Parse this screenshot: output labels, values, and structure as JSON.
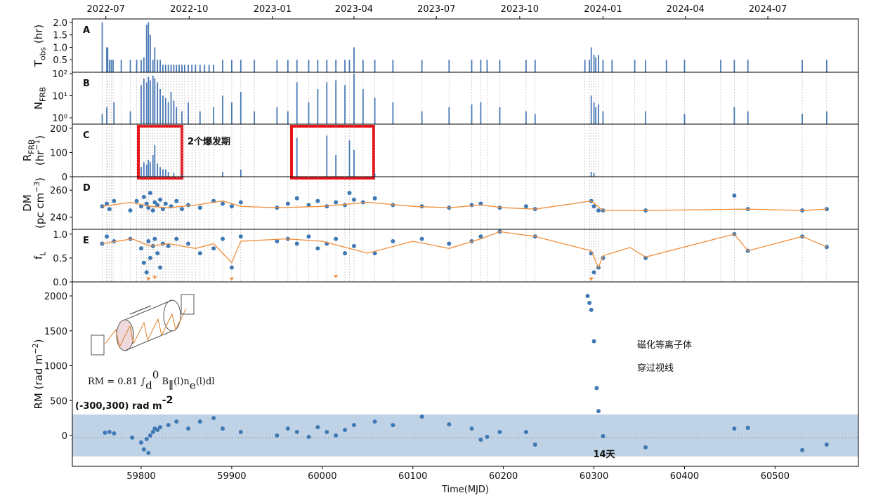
{
  "chart_data": [
    {
      "type": "bar",
      "panel_label": "A",
      "ylabel": [
        {
          "text": "T"
        },
        {
          "sub": "obs"
        },
        {
          "text": " (hr)"
        }
      ],
      "xlim": [
        59724,
        60592
      ],
      "ylim": [
        0,
        2.14
      ],
      "yticks": [
        {
          "value": 0.5,
          "label": "0.5"
        },
        {
          "value": 1.0,
          "label": "1.0"
        },
        {
          "value": 1.5,
          "label": "1.5"
        },
        {
          "value": 2.0,
          "label": "2.0"
        }
      ],
      "x2ticks": [
        {
          "value": 59761,
          "label": "2022-07"
        },
        {
          "value": 59853,
          "label": "2022-10"
        },
        {
          "value": 59945,
          "label": "2023-01"
        },
        {
          "value": 60035,
          "label": "2023-04"
        },
        {
          "value": 60126,
          "label": "2023-07"
        },
        {
          "value": 60218,
          "label": "2023-10"
        },
        {
          "value": 60310,
          "label": "2024-01"
        },
        {
          "value": 60401,
          "label": "2024-04"
        },
        {
          "value": 60492,
          "label": "2024-07"
        }
      ],
      "series": [
        {
          "mark": "bars",
          "color": "#4a7ab5",
          "x": [
            59757,
            59762,
            59763,
            59765,
            59767,
            59769,
            59778,
            59788,
            59795,
            59800,
            59803,
            59806,
            59808,
            59810,
            59813,
            59815,
            59818,
            59821,
            59824,
            59827,
            59830,
            59833,
            59836,
            59839,
            59842,
            59845,
            59848,
            59852,
            59856,
            59860,
            59865,
            59870,
            59875,
            59880,
            59890,
            59900,
            59910,
            59925,
            59950,
            59962,
            59972,
            59985,
            59995,
            60005,
            60015,
            60025,
            60030,
            60035,
            60045,
            60058,
            60078,
            60110,
            60140,
            60165,
            60175,
            60182,
            60196,
            60225,
            60235,
            60290,
            60295,
            60297,
            60300,
            60302,
            60305,
            60310,
            60320,
            60345,
            60357,
            60380,
            60400,
            60440,
            60455,
            60470,
            60530,
            60557
          ],
          "values": [
            2.0,
            1.0,
            1.0,
            0.5,
            0.5,
            0.5,
            0.5,
            0.5,
            0.5,
            0.5,
            0.6,
            1.9,
            2.0,
            1.5,
            0.5,
            1.0,
            0.5,
            0.5,
            0.3,
            0.3,
            0.3,
            0.3,
            0.3,
            0.3,
            0.3,
            0.3,
            0.3,
            0.3,
            0.3,
            0.3,
            0.3,
            0.3,
            0.3,
            0.3,
            0.5,
            0.5,
            0.5,
            0.5,
            0.5,
            0.5,
            0.5,
            0.5,
            0.5,
            0.5,
            0.5,
            0.5,
            0.5,
            1.0,
            0.5,
            0.5,
            0.5,
            0.5,
            0.5,
            0.5,
            0.5,
            0.5,
            0.5,
            0.5,
            0.5,
            0.5,
            0.5,
            1.0,
            0.7,
            0.6,
            0.7,
            0.5,
            0.5,
            0.5,
            0.5,
            0.5,
            0.5,
            0.5,
            0.5,
            0.5,
            0.5,
            0.5
          ]
        }
      ]
    },
    {
      "type": "bar",
      "panel_label": "B",
      "ylabel": [
        {
          "text": "N"
        },
        {
          "sub": "FRB"
        }
      ],
      "ylog": true,
      "obs_lines": true,
      "xlim": [
        59724,
        60592
      ],
      "ylim": [
        0.52,
        115
      ],
      "yticks": [
        {
          "value": 1,
          "label": "10⁰"
        },
        {
          "value": 10,
          "label": "10¹"
        },
        {
          "value": 100,
          "label": "10²"
        }
      ],
      "series": [
        {
          "mark": "bars",
          "color": "#4a7ab5",
          "x": [
            59757,
            59762,
            59770,
            59788,
            59800,
            59803,
            59806,
            59808,
            59810,
            59813,
            59815,
            59818,
            59821,
            59824,
            59827,
            59830,
            59833,
            59836,
            59839,
            59845,
            59852,
            59865,
            59880,
            59890,
            59900,
            59910,
            59925,
            59950,
            59962,
            59972,
            59985,
            59995,
            60005,
            60015,
            60025,
            60035,
            60045,
            60058,
            60078,
            60110,
            60140,
            60165,
            60175,
            60196,
            60225,
            60235,
            60297,
            60300,
            60302,
            60305,
            60310,
            60357,
            60400,
            60455,
            60470,
            60530,
            60557
          ],
          "values": [
            1.5,
            3,
            5,
            2,
            30,
            60,
            40,
            70,
            50,
            80,
            60,
            40,
            20,
            10,
            8,
            5,
            15,
            6,
            3,
            2,
            5,
            2,
            3,
            10,
            5,
            15,
            2,
            3,
            2,
            40,
            5,
            20,
            40,
            50,
            30,
            100,
            20,
            8,
            5,
            2,
            3,
            4,
            5,
            3,
            2,
            1.5,
            10,
            5,
            3,
            4,
            2,
            2,
            1.5,
            3,
            2,
            1.5,
            2
          ]
        }
      ]
    },
    {
      "type": "bar",
      "panel_label": "C",
      "ylabel": [
        {
          "text": "R"
        },
        {
          "sub": "FRB"
        }
      ],
      "ylabel2": [
        {
          "text": "(hr"
        },
        {
          "sup": "−1"
        },
        {
          "text": ")"
        }
      ],
      "obs_lines": true,
      "annotation": "2个爆发期",
      "xlim": [
        59724,
        60592
      ],
      "ylim": [
        0,
        217
      ],
      "yticks": [
        0,
        100,
        200
      ],
      "series": [
        {
          "mark": "bars",
          "color": "#4a7ab5",
          "x": [
            59800,
            59803,
            59806,
            59808,
            59810,
            59813,
            59815,
            59818,
            59821,
            59824,
            59827,
            59830,
            59836,
            59845,
            59890,
            59910,
            59972,
            60005,
            60015,
            60030,
            60035,
            60058,
            60297,
            60300
          ],
          "values": [
            40,
            60,
            50,
            70,
            60,
            90,
            130,
            55,
            40,
            30,
            30,
            20,
            15,
            10,
            20,
            30,
            160,
            170,
            90,
            150,
            110,
            15,
            20,
            15
          ]
        }
      ]
    },
    {
      "type": "scatter",
      "panel_label": "D",
      "ylabel": [
        {
          "text": "DM"
        }
      ],
      "ylabel2": [
        {
          "text": "(pc cm"
        },
        {
          "sup": "−3"
        },
        {
          "text": ")"
        }
      ],
      "obs_lines": true,
      "xlim": [
        59724,
        60592
      ],
      "ylim": [
        231,
        270
      ],
      "yticks": [
        240,
        260
      ],
      "series": [
        {
          "mark": "points",
          "color": "#3f79b4",
          "x": [
            59757,
            59762,
            59765,
            59770,
            59788,
            59795,
            59800,
            59803,
            59806,
            59808,
            59810,
            59813,
            59815,
            59818,
            59821,
            59824,
            59827,
            59833,
            59839,
            59845,
            59852,
            59865,
            59880,
            59890,
            59900,
            59910,
            59950,
            59962,
            59972,
            59985,
            59995,
            60005,
            60015,
            60025,
            60030,
            60035,
            60045,
            60058,
            60078,
            60110,
            60140,
            60165,
            60175,
            60196,
            60225,
            60235,
            60297,
            60300,
            60305,
            60310,
            60357,
            60455,
            60470,
            60530,
            60557
          ],
          "values": [
            248,
            250,
            246,
            252,
            245,
            252,
            248,
            255,
            250,
            247,
            258,
            245,
            251,
            249,
            253,
            246,
            250,
            248,
            252,
            246,
            249,
            247,
            252,
            250,
            248,
            251,
            247,
            250,
            254,
            249,
            252,
            248,
            251,
            249,
            258,
            253,
            251,
            254,
            249,
            248,
            247,
            249,
            250,
            247,
            248,
            246,
            252,
            248,
            245,
            245,
            245,
            256,
            246,
            245,
            246
          ]
        },
        {
          "mark": "line",
          "color": "#f28e3a",
          "x": [
            59757,
            59788,
            59810,
            59830,
            59860,
            59890,
            59910,
            59950,
            60000,
            60050,
            60100,
            60140,
            60175,
            60200,
            60235,
            60297,
            60310,
            60357,
            60470,
            60530,
            60557
          ],
          "values": [
            248,
            251,
            248,
            247,
            249,
            252,
            248,
            247,
            248,
            251,
            248,
            247,
            249,
            247,
            246,
            252,
            245,
            245,
            246,
            245,
            246
          ]
        }
      ]
    },
    {
      "type": "scatter",
      "panel_label": "E",
      "ylabel": [
        {
          "text": "f"
        },
        {
          "sub": "L"
        }
      ],
      "obs_lines": true,
      "xlim": [
        59724,
        60592
      ],
      "ylim": [
        0,
        1.1
      ],
      "yticks": [
        {
          "value": 0,
          "label": "0.0"
        },
        0.5,
        {
          "value": 1,
          "label": "1.0"
        }
      ],
      "series": [
        {
          "mark": "points",
          "color": "#3f79b4",
          "x": [
            59757,
            59762,
            59770,
            59788,
            59800,
            59803,
            59806,
            59808,
            59810,
            59813,
            59815,
            59818,
            59821,
            59824,
            59830,
            59839,
            59852,
            59865,
            59880,
            59890,
            59900,
            59910,
            59950,
            59962,
            59972,
            59985,
            59995,
            60005,
            60015,
            60025,
            60035,
            60058,
            60078,
            60110,
            60140,
            60165,
            60175,
            60196,
            60235,
            60297,
            60300,
            60305,
            60310,
            60357,
            60455,
            60470,
            60530,
            60557
          ],
          "values": [
            0.8,
            0.95,
            0.85,
            0.9,
            0.7,
            0.4,
            0.2,
            0.85,
            0.5,
            0.75,
            0.9,
            0.6,
            0.3,
            0.8,
            0.75,
            0.9,
            0.8,
            0.6,
            0.7,
            0.9,
            0.3,
            0.95,
            0.85,
            0.9,
            0.8,
            0.95,
            0.7,
            0.8,
            0.9,
            0.6,
            0.75,
            0.6,
            0.85,
            0.9,
            0.8,
            0.85,
            0.95,
            1.05,
            0.95,
            0.6,
            0.2,
            0.3,
            0.5,
            0.5,
            1.0,
            0.65,
            0.95,
            0.73
          ]
        },
        {
          "mark": "triangles",
          "color": "#f28e3a",
          "x": [
            59808,
            59815,
            59900,
            60015,
            60297
          ],
          "values": [
            0.05,
            0.08,
            0.05,
            0.1,
            0.05
          ]
        },
        {
          "mark": "line",
          "color": "#f28e3a",
          "x": [
            59757,
            59790,
            59810,
            59830,
            59860,
            59880,
            59900,
            59910,
            59960,
            60000,
            60050,
            60100,
            60140,
            60175,
            60196,
            60235,
            60297,
            60305,
            60310,
            60340,
            60357,
            60455,
            60470,
            60530,
            60557
          ],
          "values": [
            0.8,
            0.9,
            0.75,
            0.8,
            0.7,
            0.8,
            0.4,
            0.85,
            0.9,
            0.85,
            0.6,
            0.85,
            0.7,
            0.9,
            1.05,
            0.95,
            0.65,
            0.3,
            0.55,
            0.72,
            0.52,
            1.0,
            0.65,
            0.95,
            0.73
          ]
        }
      ]
    },
    {
      "type": "scatter",
      "ylabel": [
        {
          "text": "RM (rad m"
        },
        {
          "sup": "−2"
        },
        {
          "text": ")"
        }
      ],
      "xlim": [
        59724,
        60592
      ],
      "ylim": [
        -442,
        2201
      ],
      "yticks": [
        0,
        500,
        1000,
        1500,
        2000
      ],
      "xticks": [
        59800,
        59900,
        60000,
        60100,
        60200,
        60300,
        60400,
        60500
      ],
      "xlabel": "Time(MJD)",
      "band": [
        -300,
        300
      ],
      "band_color": "#bfd2e6",
      "band_label": [
        {
          "text": "(-300,300) rad m"
        },
        {
          "sup": "-2"
        }
      ],
      "formula": [
        {
          "text": "RM = 0.81 ∫"
        },
        {
          "sub": "d"
        },
        {
          "sup": "0"
        },
        {
          "text": " B"
        },
        {
          "sub": "∥"
        },
        {
          "text": "(l)n"
        },
        {
          "sub": "e"
        },
        {
          "text": "(l)dl"
        }
      ],
      "annotations": [
        "磁化等离子体",
        "穿过视线"
      ],
      "interval_label": "14天",
      "series": [
        {
          "mark": "points",
          "color": "#3f79b4",
          "x": [
            59760,
            59765,
            59770,
            59790,
            59800,
            59803,
            59806,
            59808,
            59810,
            59813,
            59815,
            59818,
            59821,
            59830,
            59839,
            59852,
            59865,
            59880,
            59890,
            59910,
            59950,
            59962,
            59972,
            59985,
            59995,
            60005,
            60015,
            60025,
            60035,
            60058,
            60078,
            60110,
            60140,
            60165,
            60175,
            60182,
            60196,
            60225,
            60235,
            60293,
            60295,
            60297,
            60300,
            60303,
            60305,
            60310,
            60357,
            60455,
            60470,
            60530,
            60557
          ],
          "values": [
            40,
            50,
            30,
            -30,
            -100,
            -200,
            -50,
            -250,
            0,
            50,
            100,
            80,
            120,
            150,
            200,
            100,
            200,
            250,
            100,
            50,
            0,
            100,
            50,
            -20,
            120,
            50,
            0,
            80,
            150,
            200,
            150,
            270,
            160,
            100,
            -60,
            -20,
            50,
            50,
            -130,
            2000,
            1900,
            1800,
            1350,
            680,
            350,
            -10,
            -170,
            100,
            110,
            -210,
            -130
          ]
        }
      ]
    }
  ]
}
